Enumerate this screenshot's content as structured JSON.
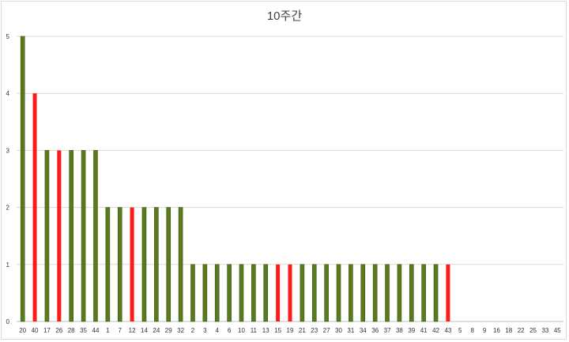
{
  "chart_data": {
    "type": "bar",
    "title": "10주간",
    "xlabel": "",
    "ylabel": "",
    "ylim": [
      0,
      5
    ],
    "yticks": [
      0,
      1,
      2,
      3,
      4,
      5
    ],
    "grid": true,
    "legend": "none",
    "colors": {
      "default": "#5a7a1e",
      "default_edge": "#3e5512",
      "highlight": "#ff1a1a",
      "grid": "#d9d9d9",
      "axis": "#bfbfbf"
    },
    "categories": [
      "20",
      "40",
      "17",
      "26",
      "28",
      "35",
      "44",
      "1",
      "7",
      "12",
      "14",
      "24",
      "29",
      "32",
      "2",
      "3",
      "4",
      "6",
      "10",
      "11",
      "13",
      "15",
      "19",
      "21",
      "23",
      "27",
      "30",
      "31",
      "34",
      "36",
      "37",
      "38",
      "39",
      "41",
      "42",
      "43",
      "5",
      "8",
      "9",
      "16",
      "18",
      "22",
      "25",
      "33",
      "45"
    ],
    "values": [
      5,
      4,
      3,
      3,
      3,
      3,
      3,
      2,
      2,
      2,
      2,
      2,
      2,
      2,
      1,
      1,
      1,
      1,
      1,
      1,
      1,
      1,
      1,
      1,
      1,
      1,
      1,
      1,
      1,
      1,
      1,
      1,
      1,
      1,
      1,
      1,
      0,
      0,
      0,
      0,
      0,
      0,
      0,
      0,
      0
    ],
    "highlighted": [
      "40",
      "26",
      "12",
      "15",
      "19",
      "43"
    ]
  }
}
